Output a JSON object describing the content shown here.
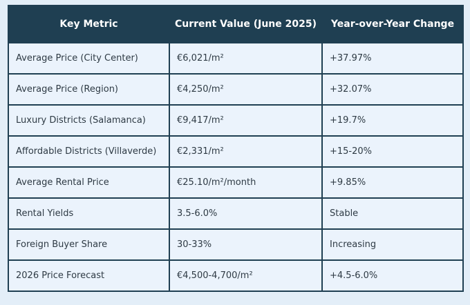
{
  "table": {
    "headers": [
      "Key Metric",
      "Current Value (June 2025)",
      "Year-over-Year Change"
    ],
    "rows": [
      [
        "Average Price (City Center)",
        "€6,021/m²",
        "+37.97%"
      ],
      [
        "Average Price (Region)",
        "€4,250/m²",
        "+32.07%"
      ],
      [
        "Luxury Districts (Salamanca)",
        "€9,417/m²",
        "+19.7%"
      ],
      [
        "Affordable Districts (Villaverde)",
        "€2,331/m²",
        "+15-20%"
      ],
      [
        "Average Rental Price",
        "€25.10/m²/month",
        "+9.85%"
      ],
      [
        "Rental Yields",
        "3.5-6.0%",
        "Stable"
      ],
      [
        "Foreign Buyer Share",
        "30-33%",
        "Increasing"
      ],
      [
        "2026 Price Forecast",
        "€4,500-4,700/m²",
        "+4.5-6.0%"
      ]
    ]
  }
}
